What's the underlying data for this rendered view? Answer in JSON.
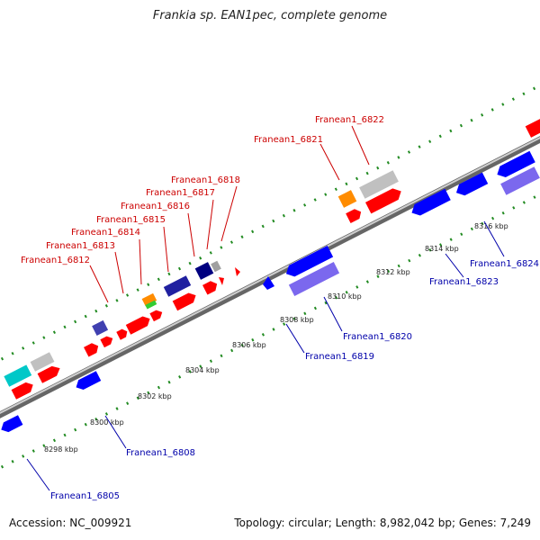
{
  "title": "Frankia sp. EAN1pec, complete genome",
  "footer": {
    "accession": "Accession: NC_009921",
    "summary": "Topology: circular; Length: 8,982,042 bp; Genes: 7,249"
  },
  "colors": {
    "plus_gene": "#ff0000",
    "minus_gene": "#0000ff",
    "plus_label": "#cc0000",
    "minus_label": "#0000aa",
    "backbone": "#888888",
    "dots": "#228b22"
  },
  "scale_ticks": [
    "8298 kbp",
    "8300 kbp",
    "8302 kbp",
    "8304 kbp",
    "8306 kbp",
    "8308 kbp",
    "8310 kbp",
    "8312 kbp",
    "8314 kbp",
    "8316 kbp"
  ],
  "plus_labels": [
    "Franean1_6812",
    "Franean1_6813",
    "Franean1_6814",
    "Franean1_6815",
    "Franean1_6816",
    "Franean1_6817",
    "Franean1_6818",
    "Franean1_6821",
    "Franean1_6822"
  ],
  "minus_labels": [
    "Franean1_6805",
    "Franean1_6808",
    "Franean1_6819",
    "Franean1_6820",
    "Franean1_6823",
    "Franean1_6824"
  ]
}
